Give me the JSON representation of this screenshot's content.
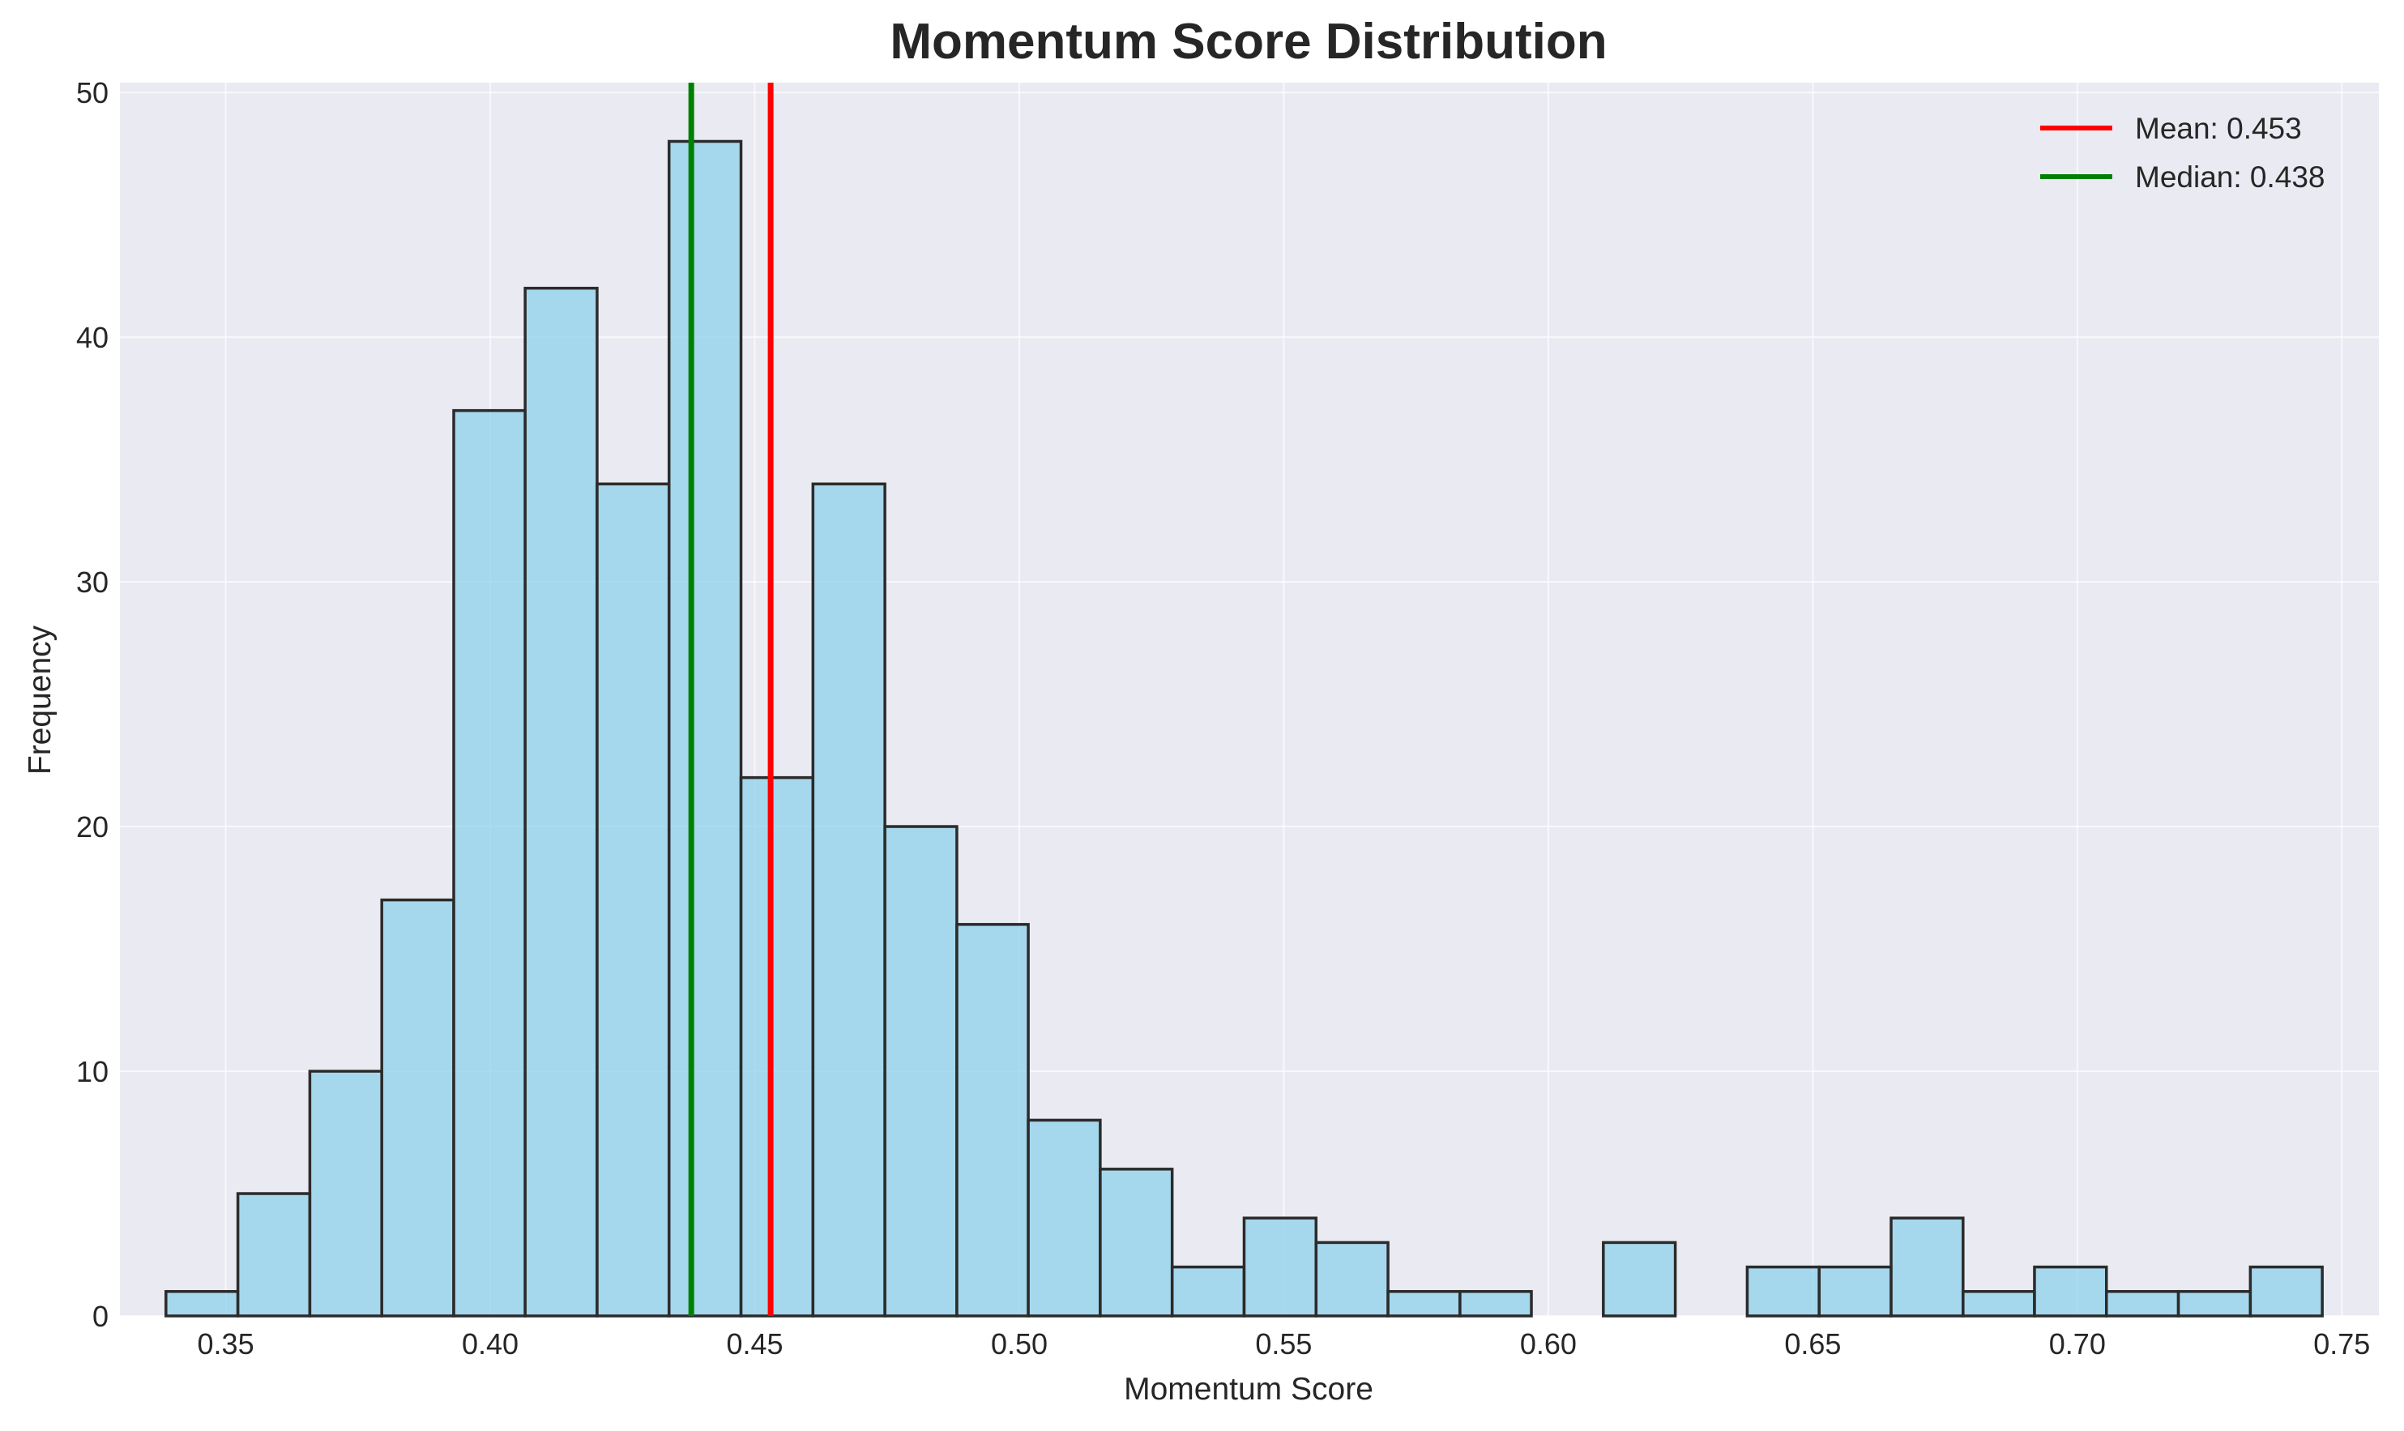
{
  "chart_data": {
    "type": "bar",
    "title": "Momentum Score Distribution",
    "xlabel": "Momentum Score",
    "ylabel": "Frequency",
    "xlim": [
      0.33,
      0.757
    ],
    "ylim": [
      0,
      50.4
    ],
    "xticks": [
      0.35,
      0.4,
      0.45,
      0.5,
      0.55,
      0.6,
      0.65,
      0.7,
      0.75
    ],
    "xtick_labels": [
      "0.35",
      "0.40",
      "0.45",
      "0.50",
      "0.55",
      "0.60",
      "0.65",
      "0.70",
      "0.75"
    ],
    "yticks": [
      0,
      10,
      20,
      30,
      40,
      50
    ],
    "ytick_labels": [
      "0",
      "10",
      "20",
      "30",
      "40",
      "50"
    ],
    "bin_edges": [
      0.3387,
      0.3523,
      0.3659,
      0.3795,
      0.3931,
      0.4066,
      0.4202,
      0.4338,
      0.4474,
      0.461,
      0.4746,
      0.4882,
      0.5017,
      0.5153,
      0.5289,
      0.5425,
      0.5561,
      0.5697,
      0.5833,
      0.5968,
      0.6104,
      0.624,
      0.6376,
      0.6512,
      0.6648,
      0.6784,
      0.6919,
      0.7055,
      0.7191,
      0.7327,
      0.7463
    ],
    "values": [
      1,
      5,
      10,
      17,
      37,
      42,
      34,
      48,
      22,
      34,
      20,
      16,
      8,
      6,
      2,
      4,
      3,
      1,
      1,
      0,
      3,
      0,
      2,
      2,
      4,
      1,
      2,
      1,
      1,
      2
    ],
    "bar_color": "#87ceeb",
    "reference_lines": [
      {
        "name": "Mean: 0.453",
        "x": 0.453,
        "color": "#ff0000"
      },
      {
        "name": "Median: 0.438",
        "x": 0.438,
        "color": "#008000"
      }
    ],
    "legend_position": "top-right",
    "grid": true,
    "background_color": "#eaeaf2"
  }
}
